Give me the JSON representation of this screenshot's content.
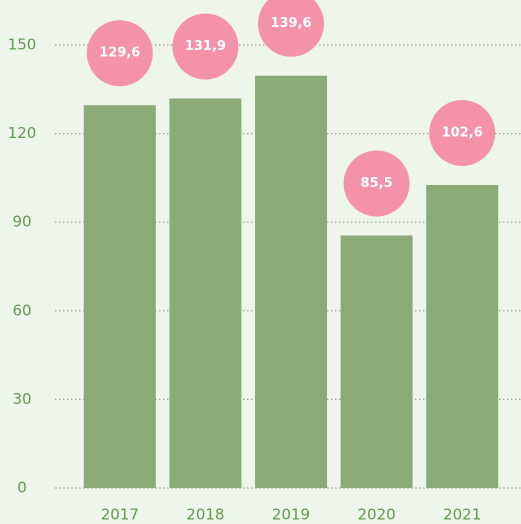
{
  "chart_data": {
    "type": "bar",
    "categories": [
      "2017",
      "2018",
      "2019",
      "2020",
      "2021"
    ],
    "values": [
      129.6,
      131.9,
      139.6,
      85.5,
      102.6
    ],
    "value_labels": [
      "129,6",
      "131,9",
      "139,6",
      "85,5",
      "102,6"
    ],
    "color": "#8aaa78",
    "label_color": "#f492ac",
    "ylim": [
      0,
      150
    ],
    "yticks": [
      0,
      30,
      60,
      90,
      120,
      150
    ],
    "grid": true
  }
}
